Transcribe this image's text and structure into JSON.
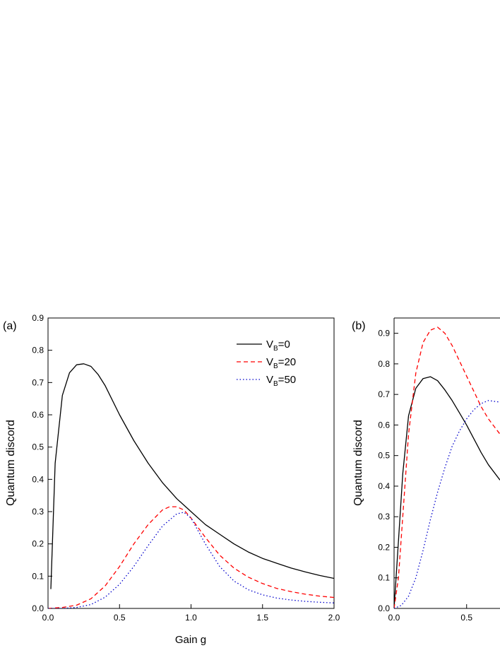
{
  "chart_data": [
    {
      "type": "line",
      "panel_label": "(a)",
      "xlabel": "Gain g",
      "ylabel": "Quantum discord",
      "xlim": [
        0,
        2.0
      ],
      "ylim": [
        0,
        0.9
      ],
      "xticks": [
        "0.0",
        "0.5",
        "1.0",
        "1.5",
        "2.0"
      ],
      "yticks": [
        "0.0",
        "0.1",
        "0.2",
        "0.3",
        "0.4",
        "0.5",
        "0.6",
        "0.7",
        "0.8",
        "0.9"
      ],
      "legend_position": "top-right",
      "series": [
        {
          "legend_main": "V",
          "legend_sub": "B",
          "legend_suffix": "=0",
          "color": "#000000",
          "dash": "solid",
          "x": [
            0.02,
            0.05,
            0.1,
            0.15,
            0.2,
            0.25,
            0.3,
            0.35,
            0.4,
            0.5,
            0.6,
            0.7,
            0.8,
            0.9,
            1.0,
            1.1,
            1.2,
            1.3,
            1.4,
            1.5,
            1.6,
            1.7,
            1.8,
            1.9,
            2.0
          ],
          "y": [
            0.06,
            0.45,
            0.66,
            0.73,
            0.755,
            0.758,
            0.75,
            0.725,
            0.69,
            0.6,
            0.52,
            0.45,
            0.39,
            0.34,
            0.3,
            0.26,
            0.23,
            0.2,
            0.175,
            0.155,
            0.14,
            0.125,
            0.113,
            0.102,
            0.093
          ]
        },
        {
          "legend_main": "V",
          "legend_sub": "B",
          "legend_suffix": "=20",
          "color": "#ff0000",
          "dash": "dashed",
          "x": [
            0.0,
            0.1,
            0.2,
            0.3,
            0.4,
            0.5,
            0.6,
            0.7,
            0.8,
            0.85,
            0.9,
            0.95,
            1.0,
            1.1,
            1.2,
            1.3,
            1.4,
            1.5,
            1.6,
            1.7,
            1.8,
            1.9,
            2.0
          ],
          "y": [
            0.0,
            0.003,
            0.01,
            0.03,
            0.07,
            0.13,
            0.2,
            0.26,
            0.305,
            0.315,
            0.315,
            0.305,
            0.28,
            0.22,
            0.165,
            0.125,
            0.097,
            0.077,
            0.062,
            0.052,
            0.044,
            0.038,
            0.034
          ]
        },
        {
          "legend_main": "V",
          "legend_sub": "B",
          "legend_suffix": "=50",
          "color": "#0000cc",
          "dash": "dotted",
          "x": [
            0.0,
            0.1,
            0.2,
            0.3,
            0.4,
            0.5,
            0.6,
            0.7,
            0.8,
            0.9,
            0.95,
            1.0,
            1.1,
            1.2,
            1.3,
            1.4,
            1.5,
            1.6,
            1.7,
            1.8,
            1.9,
            2.0
          ],
          "y": [
            0.0,
            0.0,
            0.003,
            0.012,
            0.035,
            0.075,
            0.13,
            0.195,
            0.255,
            0.293,
            0.298,
            0.28,
            0.2,
            0.13,
            0.085,
            0.058,
            0.042,
            0.032,
            0.026,
            0.022,
            0.019,
            0.017
          ]
        }
      ]
    },
    {
      "type": "line",
      "panel_label": "(b)",
      "xlabel": "",
      "ylabel": "Quantum discord",
      "xlim": [
        0,
        0.73
      ],
      "ylim": [
        0,
        0.95
      ],
      "xticks": [
        "0.0",
        "0.5"
      ],
      "yticks": [
        "0.0",
        "0.1",
        "0.2",
        "0.3",
        "0.4",
        "0.5",
        "0.6",
        "0.7",
        "0.8",
        "0.9"
      ],
      "series": [
        {
          "color": "#000000",
          "dash": "solid",
          "x": [
            0.0,
            0.03,
            0.06,
            0.1,
            0.15,
            0.2,
            0.25,
            0.3,
            0.35,
            0.4,
            0.45,
            0.5,
            0.55,
            0.6,
            0.65,
            0.73
          ],
          "y": [
            0.0,
            0.22,
            0.44,
            0.63,
            0.72,
            0.752,
            0.758,
            0.745,
            0.715,
            0.68,
            0.64,
            0.6,
            0.555,
            0.51,
            0.47,
            0.42
          ]
        },
        {
          "color": "#ff0000",
          "dash": "dashed",
          "x": [
            0.0,
            0.03,
            0.06,
            0.1,
            0.15,
            0.2,
            0.25,
            0.3,
            0.35,
            0.4,
            0.45,
            0.5,
            0.55,
            0.6,
            0.65,
            0.73
          ],
          "y": [
            0.0,
            0.1,
            0.3,
            0.57,
            0.77,
            0.87,
            0.91,
            0.92,
            0.9,
            0.86,
            0.81,
            0.76,
            0.71,
            0.66,
            0.62,
            0.57
          ]
        },
        {
          "color": "#0000cc",
          "dash": "dotted",
          "x": [
            0.0,
            0.05,
            0.1,
            0.15,
            0.2,
            0.25,
            0.3,
            0.35,
            0.4,
            0.45,
            0.5,
            0.55,
            0.6,
            0.65,
            0.68,
            0.73
          ],
          "y": [
            0.0,
            0.01,
            0.04,
            0.1,
            0.19,
            0.29,
            0.38,
            0.46,
            0.53,
            0.58,
            0.62,
            0.65,
            0.67,
            0.68,
            0.678,
            0.675
          ]
        }
      ]
    }
  ]
}
